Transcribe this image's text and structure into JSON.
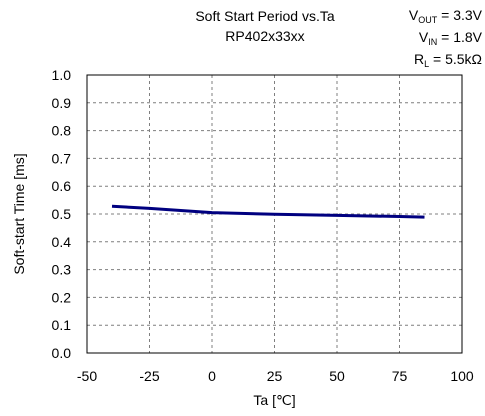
{
  "header": {
    "title_line1": "Soft Start Period vs.Ta",
    "title_line2": "RP402x33xx"
  },
  "conditions": [
    {
      "main": "V",
      "sub": "OUT",
      "rest": " = 3.3V"
    },
    {
      "main": "V",
      "sub": "IN",
      "rest": " = 1.8V"
    },
    {
      "main": "R",
      "sub": "L",
      "rest": " =  5.5kΩ"
    }
  ],
  "chart_data": {
    "type": "line",
    "title": "Soft Start Period vs.Ta",
    "subtitle": "RP402x33xx",
    "xlabel": "Ta [℃]",
    "ylabel": "Soft-start Time [ms]",
    "xlim": [
      -50,
      100
    ],
    "ylim": [
      0.0,
      1.0
    ],
    "x_ticks": [
      "-50",
      "-25",
      "0",
      "25",
      "50",
      "75",
      "100"
    ],
    "y_ticks": [
      "0.0",
      "0.1",
      "0.2",
      "0.3",
      "0.4",
      "0.5",
      "0.6",
      "0.7",
      "0.8",
      "0.9",
      "1.0"
    ],
    "grid": true,
    "line_color": "#000080",
    "series": [
      {
        "x": [
          -40,
          -25,
          0,
          25,
          50,
          75,
          85
        ],
        "y": [
          0.528,
          0.52,
          0.505,
          0.499,
          0.495,
          0.491,
          0.489
        ]
      }
    ]
  }
}
